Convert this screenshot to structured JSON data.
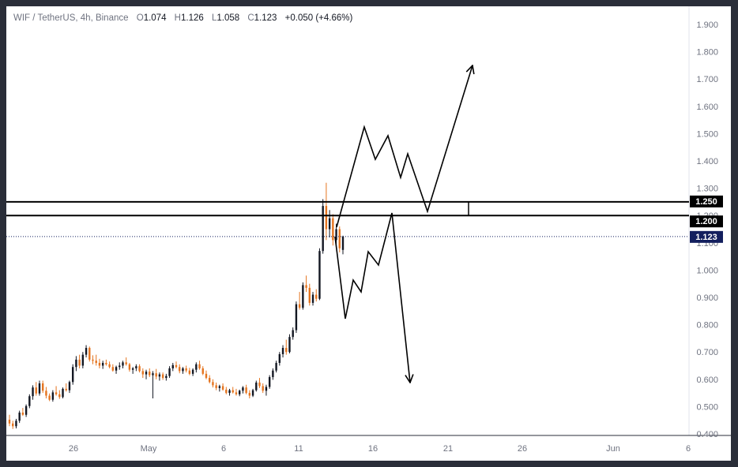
{
  "header": {
    "symbol": "WIF / TetherUS, 4h, Binance",
    "o_label": "O",
    "o_value": "1.074",
    "h_label": "H",
    "h_value": "1.126",
    "l_label": "L",
    "l_value": "1.058",
    "c_label": "C",
    "c_value": "1.123",
    "change": "+0.050 (+4.66%)"
  },
  "colors": {
    "up": "#131722",
    "down": "#e5741f",
    "level_box": "#000000",
    "last_price_badge": "#131f5e",
    "frame": "#2a2e39",
    "axis_text": "#6f7380"
  },
  "chart_data": {
    "type": "candlestick",
    "ylim": [
      0.4,
      1.9
    ],
    "y_ticks": [
      "1.900",
      "1.800",
      "1.700",
      "1.600",
      "1.500",
      "1.400",
      "1.300",
      "1.200",
      "1.100",
      "1.000",
      "0.900",
      "0.800",
      "0.700",
      "0.600",
      "0.500",
      "0.400"
    ],
    "x_ticks": [
      "26",
      "May",
      "6",
      "11",
      "16",
      "21",
      "26",
      "Jun",
      "6"
    ],
    "levels": [
      {
        "price": 1.25,
        "label": "1.250"
      },
      {
        "price": 1.2,
        "label": "1.200"
      }
    ],
    "last_price": {
      "price": 1.123,
      "label": "1.123"
    },
    "candles": [
      [
        0.452,
        0.47,
        0.428,
        0.438
      ],
      [
        0.438,
        0.448,
        0.418,
        0.428
      ],
      [
        0.428,
        0.455,
        0.42,
        0.448
      ],
      [
        0.448,
        0.485,
        0.44,
        0.478
      ],
      [
        0.478,
        0.495,
        0.466,
        0.47
      ],
      [
        0.47,
        0.508,
        0.462,
        0.502
      ],
      [
        0.502,
        0.545,
        0.494,
        0.538
      ],
      [
        0.538,
        0.578,
        0.525,
        0.57
      ],
      [
        0.57,
        0.59,
        0.54,
        0.548
      ],
      [
        0.548,
        0.595,
        0.54,
        0.585
      ],
      [
        0.585,
        0.595,
        0.55,
        0.558
      ],
      [
        0.558,
        0.572,
        0.53,
        0.54
      ],
      [
        0.54,
        0.548,
        0.52,
        0.525
      ],
      [
        0.525,
        0.56,
        0.518,
        0.552
      ],
      [
        0.552,
        0.575,
        0.54,
        0.545
      ],
      [
        0.545,
        0.56,
        0.528,
        0.535
      ],
      [
        0.535,
        0.57,
        0.53,
        0.565
      ],
      [
        0.565,
        0.585,
        0.555,
        0.56
      ],
      [
        0.56,
        0.595,
        0.55,
        0.59
      ],
      [
        0.59,
        0.655,
        0.58,
        0.645
      ],
      [
        0.645,
        0.685,
        0.63,
        0.672
      ],
      [
        0.672,
        0.69,
        0.64,
        0.65
      ],
      [
        0.65,
        0.7,
        0.64,
        0.69
      ],
      [
        0.69,
        0.725,
        0.68,
        0.715
      ],
      [
        0.715,
        0.72,
        0.665,
        0.672
      ],
      [
        0.672,
        0.688,
        0.655,
        0.668
      ],
      [
        0.668,
        0.69,
        0.65,
        0.66
      ],
      [
        0.66,
        0.675,
        0.64,
        0.65
      ],
      [
        0.65,
        0.668,
        0.638,
        0.66
      ],
      [
        0.66,
        0.672,
        0.65,
        0.655
      ],
      [
        0.655,
        0.665,
        0.64,
        0.645
      ],
      [
        0.645,
        0.655,
        0.628,
        0.632
      ],
      [
        0.632,
        0.65,
        0.62,
        0.645
      ],
      [
        0.645,
        0.662,
        0.635,
        0.65
      ],
      [
        0.65,
        0.668,
        0.64,
        0.662
      ],
      [
        0.662,
        0.68,
        0.65,
        0.655
      ],
      [
        0.655,
        0.66,
        0.628,
        0.635
      ],
      [
        0.635,
        0.645,
        0.62,
        0.64
      ],
      [
        0.64,
        0.655,
        0.63,
        0.648
      ],
      [
        0.648,
        0.655,
        0.625,
        0.63
      ],
      [
        0.63,
        0.64,
        0.605,
        0.618
      ],
      [
        0.618,
        0.635,
        0.6,
        0.628
      ],
      [
        0.628,
        0.64,
        0.608,
        0.615
      ],
      [
        0.615,
        0.63,
        0.53,
        0.622
      ],
      [
        0.622,
        0.638,
        0.6,
        0.61
      ],
      [
        0.61,
        0.625,
        0.595,
        0.618
      ],
      [
        0.618,
        0.625,
        0.598,
        0.605
      ],
      [
        0.605,
        0.62,
        0.595,
        0.612
      ],
      [
        0.612,
        0.648,
        0.605,
        0.64
      ],
      [
        0.64,
        0.66,
        0.63,
        0.652
      ],
      [
        0.652,
        0.665,
        0.64,
        0.645
      ],
      [
        0.645,
        0.655,
        0.622,
        0.63
      ],
      [
        0.63,
        0.645,
        0.62,
        0.64
      ],
      [
        0.64,
        0.65,
        0.625,
        0.632
      ],
      [
        0.632,
        0.642,
        0.615,
        0.62
      ],
      [
        0.62,
        0.64,
        0.612,
        0.635
      ],
      [
        0.635,
        0.662,
        0.625,
        0.655
      ],
      [
        0.655,
        0.668,
        0.635,
        0.64
      ],
      [
        0.64,
        0.648,
        0.615,
        0.62
      ],
      [
        0.62,
        0.632,
        0.6,
        0.605
      ],
      [
        0.605,
        0.615,
        0.585,
        0.59
      ],
      [
        0.59,
        0.6,
        0.57,
        0.578
      ],
      [
        0.578,
        0.588,
        0.56,
        0.568
      ],
      [
        0.568,
        0.58,
        0.555,
        0.575
      ],
      [
        0.575,
        0.585,
        0.558,
        0.562
      ],
      [
        0.562,
        0.572,
        0.545,
        0.55
      ],
      [
        0.55,
        0.565,
        0.54,
        0.56
      ],
      [
        0.56,
        0.572,
        0.548,
        0.552
      ],
      [
        0.552,
        0.565,
        0.54,
        0.545
      ],
      [
        0.545,
        0.562,
        0.538,
        0.558
      ],
      [
        0.558,
        0.575,
        0.548,
        0.57
      ],
      [
        0.57,
        0.58,
        0.545,
        0.55
      ],
      [
        0.55,
        0.56,
        0.53,
        0.54
      ],
      [
        0.54,
        0.565,
        0.535,
        0.56
      ],
      [
        0.56,
        0.595,
        0.555,
        0.588
      ],
      [
        0.588,
        0.605,
        0.568,
        0.575
      ],
      [
        0.575,
        0.585,
        0.55,
        0.558
      ],
      [
        0.558,
        0.58,
        0.54,
        0.572
      ],
      [
        0.572,
        0.615,
        0.565,
        0.608
      ],
      [
        0.608,
        0.64,
        0.598,
        0.632
      ],
      [
        0.632,
        0.668,
        0.625,
        0.66
      ],
      [
        0.66,
        0.7,
        0.65,
        0.692
      ],
      [
        0.692,
        0.725,
        0.68,
        0.715
      ],
      [
        0.715,
        0.745,
        0.69,
        0.7
      ],
      [
        0.7,
        0.765,
        0.695,
        0.755
      ],
      [
        0.755,
        0.79,
        0.745,
        0.78
      ],
      [
        0.78,
        0.885,
        0.77,
        0.875
      ],
      [
        0.875,
        0.92,
        0.855,
        0.862
      ],
      [
        0.862,
        0.955,
        0.855,
        0.945
      ],
      [
        0.945,
        0.98,
        0.92,
        0.935
      ],
      [
        0.935,
        0.95,
        0.87,
        0.88
      ],
      [
        0.88,
        0.92,
        0.87,
        0.91
      ],
      [
        0.91,
        0.93,
        0.885,
        0.895
      ],
      [
        0.895,
        1.08,
        0.89,
        1.07
      ],
      [
        1.07,
        1.26,
        1.06,
        1.235
      ],
      [
        1.235,
        1.32,
        1.11,
        1.15
      ],
      [
        1.15,
        1.22,
        1.12,
        1.19
      ],
      [
        1.19,
        1.205,
        1.09,
        1.11
      ],
      [
        1.11,
        1.17,
        1.085,
        1.15
      ],
      [
        1.15,
        1.16,
        1.065,
        1.08
      ],
      [
        1.074,
        1.126,
        1.058,
        1.123
      ]
    ]
  }
}
